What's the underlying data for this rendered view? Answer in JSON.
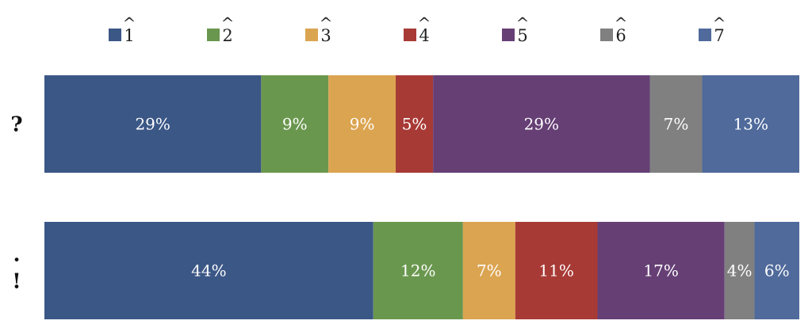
{
  "chart_data": {
    "type": "bar",
    "orientation": "horizontal",
    "stacked": true,
    "normalized": true,
    "categories": [
      "?",
      ".\n!"
    ],
    "series": [
      {
        "name": "1̂",
        "symbol": "1",
        "color": "#3b5786",
        "values": [
          29,
          44
        ]
      },
      {
        "name": "2̂",
        "symbol": "2",
        "color": "#6a974e",
        "values": [
          9,
          12
        ]
      },
      {
        "name": "3̂",
        "symbol": "3",
        "color": "#dba450",
        "values": [
          9,
          7
        ]
      },
      {
        "name": "4̂",
        "symbol": "4",
        "color": "#a83a36",
        "values": [
          5,
          11
        ]
      },
      {
        "name": "5̂",
        "symbol": "5",
        "color": "#663f75",
        "values": [
          29,
          17
        ]
      },
      {
        "name": "6̂",
        "symbol": "6",
        "color": "#808080",
        "values": [
          7,
          4
        ]
      },
      {
        "name": "7̂",
        "symbol": "7",
        "color": "#4f6a9b",
        "values": [
          13,
          6
        ]
      }
    ],
    "data_labels": [
      [
        "29%",
        "9%",
        "9%",
        "5%",
        "29%",
        "7%",
        "13%"
      ],
      [
        "44%",
        "12%",
        "7%",
        "11%",
        "17%",
        "4%",
        "6%"
      ]
    ],
    "unit": "%",
    "legend_position": "top",
    "grid": false
  }
}
